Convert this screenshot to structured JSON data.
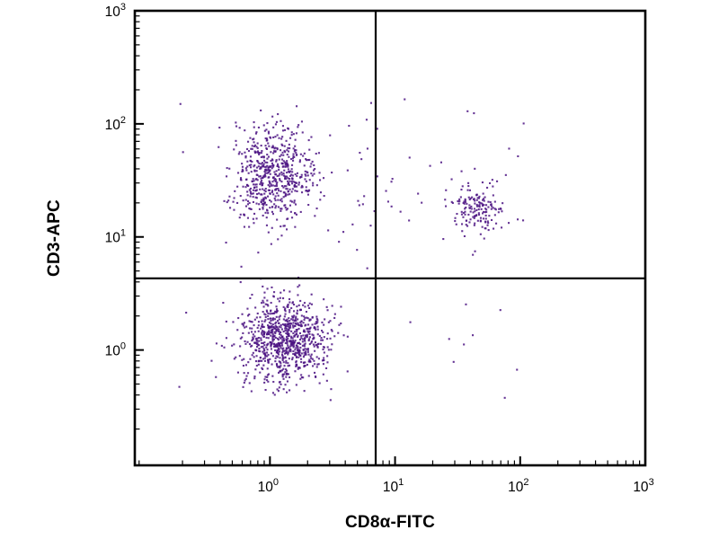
{
  "figure": {
    "background": "#ffffff",
    "axis_color": "#000000",
    "dot_color": "#4b1382",
    "dot_size": 2.1,
    "dot_opacity": 0.85
  },
  "chart_data": {
    "type": "scatter",
    "title": "",
    "xlabel": "CD8α-FITC",
    "ylabel": "CD3-APC",
    "x_scale": "log",
    "y_scale": "log",
    "x_tick_exponents": [
      0,
      1,
      2,
      3
    ],
    "y_tick_exponents": [
      0,
      1,
      2,
      3
    ],
    "x_tick_labels": [
      "10^0",
      "10^1",
      "10^2",
      "10^3"
    ],
    "y_tick_labels": [
      "10^0",
      "10^1",
      "10^2",
      "10^3"
    ],
    "xlim_log": [
      -1.08,
      3
    ],
    "ylim_log": [
      -1.02,
      3
    ],
    "grid": false,
    "legend": "none",
    "quadrant_gate": {
      "x_value": 7,
      "y_value": 4.3
    },
    "seed": 42,
    "clusters": [
      {
        "name": "CD3+CD8- lymphocytes (upper-left)",
        "dist": "gauss",
        "count": 600,
        "cx": 0.02,
        "cy": 1.55,
        "sx": 0.17,
        "sy": 0.21
      },
      {
        "name": "CD3+CD8+ lymphocytes (upper-right)",
        "dist": "gauss",
        "count": 150,
        "cx": 1.65,
        "cy": 1.25,
        "sx": 0.11,
        "sy": 0.12
      },
      {
        "name": "CD3-CD8- cells (lower-left)",
        "dist": "gauss",
        "count": 850,
        "cx": 0.12,
        "cy": 0.09,
        "sx": 0.17,
        "sy": 0.19
      },
      {
        "name": "sparse scatter left region",
        "dist": "uniform",
        "count": 35,
        "x0": -0.75,
        "x1": 0.9,
        "y0": -0.7,
        "y1": 2.2
      },
      {
        "name": "sparse scatter mid upper",
        "dist": "uniform",
        "count": 18,
        "x0": 0.35,
        "x1": 1.35,
        "y0": 0.8,
        "y1": 2.05
      },
      {
        "name": "upper-right halo",
        "dist": "gauss",
        "count": 25,
        "cx": 1.6,
        "cy": 1.3,
        "sx": 0.3,
        "sy": 0.35
      },
      {
        "name": "sparse scatter lower-right",
        "dist": "uniform",
        "count": 8,
        "x0": 0.95,
        "x1": 2.05,
        "y0": -0.5,
        "y1": 0.4
      }
    ]
  }
}
